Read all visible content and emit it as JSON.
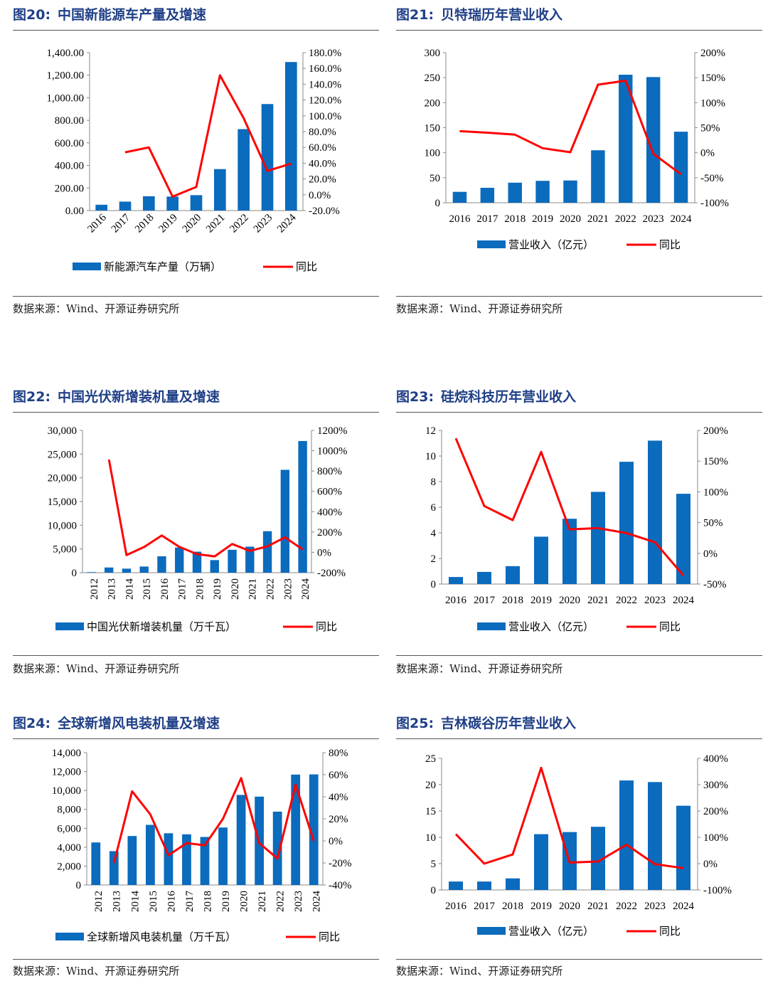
{
  "colors": {
    "bar": "#0b6bbd",
    "line": "#ff0000",
    "title": "#1f3f86"
  },
  "charts": [
    {
      "id": "c20",
      "num": "图20:",
      "title": "中国新能源车产量及增速",
      "source": "数据来源：Wind、开源证券研究所",
      "chart_data": {
        "type": "bar",
        "title": "中国新能源车产量及增速",
        "categories": [
          "2016",
          "2017",
          "2018",
          "2019",
          "2020",
          "2021",
          "2022",
          "2023",
          "2024"
        ],
        "series": [
          {
            "name": "新能源汽车产量（万辆）",
            "kind": "bar",
            "axis": "left",
            "values": [
              51.7,
              79.4,
              127.0,
              124.2,
              136.6,
              367.7,
              721.9,
              944.3,
              1316.8
            ]
          },
          {
            "name": "同比",
            "kind": "line",
            "axis": "right",
            "values": [
              null,
              53.8,
              60.0,
              -2.3,
              10.0,
              151.3,
              96.9,
              30.3,
              39.4
            ]
          }
        ],
        "left_axis": {
          "min": 0,
          "max": 1400,
          "ticks": [
            "0.00",
            "200.00",
            "400.00",
            "600.00",
            "800.00",
            "1,000.00",
            "1,200.00",
            "1,400.00"
          ]
        },
        "right_axis": {
          "min": -20,
          "max": 180,
          "ticks": [
            "-20.0%",
            "0.0%",
            "20.0%",
            "40.0%",
            "60.0%",
            "80.0%",
            "100.0%",
            "120.0%",
            "140.0%",
            "160.0%",
            "180.0%"
          ]
        },
        "rotated_labels": true,
        "legend": [
          "新能源汽车产量（万辆）",
          "同比"
        ]
      }
    },
    {
      "id": "c21",
      "num": "图21:",
      "title": "贝特瑞历年营业收入",
      "source": "数据来源：Wind、开源证券研究所",
      "chart_data": {
        "type": "bar",
        "title": "贝特瑞历年营业收入",
        "categories": [
          "2016",
          "2017",
          "2018",
          "2019",
          "2020",
          "2021",
          "2022",
          "2023",
          "2024"
        ],
        "series": [
          {
            "name": "营业收入（亿元）",
            "kind": "bar",
            "axis": "left",
            "values": [
              21.8,
              29.9,
              40.1,
              43.8,
              44.5,
              104.9,
              255.9,
              251.2,
              142.0
            ]
          },
          {
            "name": "同比",
            "kind": "line",
            "axis": "right",
            "values": [
              43,
              40,
              36,
              9,
              1,
              136,
              144,
              -2,
              -43
            ]
          }
        ],
        "left_axis": {
          "min": 0,
          "max": 300,
          "ticks": [
            "0",
            "50",
            "100",
            "150",
            "200",
            "250",
            "300"
          ]
        },
        "right_axis": {
          "min": -100,
          "max": 200,
          "ticks": [
            "-100%",
            "-50%",
            "0%",
            "50%",
            "100%",
            "150%",
            "200%"
          ]
        },
        "rotated_labels": false,
        "legend": [
          "营业收入（亿元）",
          "同比"
        ]
      }
    },
    {
      "id": "c22",
      "num": "图22:",
      "title": "中国光伏新增装机量及增速",
      "source": "数据来源：Wind、开源证券研究所",
      "chart_data": {
        "type": "bar",
        "title": "中国光伏新增装机量及增速",
        "categories": [
          "2012",
          "2013",
          "2014",
          "2015",
          "2016",
          "2017",
          "2018",
          "2019",
          "2020",
          "2021",
          "2022",
          "2023",
          "2024"
        ],
        "series": [
          {
            "name": "中国光伏新增装机量（万千瓦）",
            "kind": "bar",
            "axis": "left",
            "values": [
              120,
              1095,
              850,
              1297,
              3454,
              5306,
              4426,
              2652,
              4820,
              5488,
              8741,
              21688,
              27760
            ]
          },
          {
            "name": "同比",
            "kind": "line",
            "axis": "right",
            "values": [
              null,
              913,
              -27,
              53,
              166,
              54,
              -17,
              -40,
              82,
              14,
              59,
              148,
              28
            ]
          }
        ],
        "left_axis": {
          "min": 0,
          "max": 30000,
          "ticks": [
            "0",
            "5,000",
            "10,000",
            "15,000",
            "20,000",
            "25,000",
            "30,000"
          ]
        },
        "right_axis": {
          "min": -200,
          "max": 1200,
          "ticks": [
            "-200%",
            "0%",
            "200%",
            "400%",
            "600%",
            "800%",
            "1000%",
            "1200%"
          ]
        },
        "rotated_labels": true,
        "legend": [
          "中国光伏新增装机量（万千瓦）",
          "同比"
        ]
      }
    },
    {
      "id": "c23",
      "num": "图23:",
      "title": "硅烷科技历年营业收入",
      "source": "数据来源：Wind、开源证券研究所",
      "chart_data": {
        "type": "bar",
        "title": "硅烷科技历年营业收入",
        "categories": [
          "2016",
          "2017",
          "2018",
          "2019",
          "2020",
          "2021",
          "2022",
          "2023",
          "2024"
        ],
        "series": [
          {
            "name": "营业收入（亿元）",
            "kind": "bar",
            "axis": "left",
            "values": [
              0.55,
              0.95,
              1.4,
              3.7,
              5.1,
              7.2,
              9.55,
              11.2,
              7.05
            ]
          },
          {
            "name": "同比",
            "kind": "line",
            "axis": "right",
            "values": [
              187,
              77,
              54,
              165,
              39,
              41,
              33,
              18,
              -36
            ]
          }
        ],
        "left_axis": {
          "min": 0,
          "max": 12,
          "ticks": [
            "0",
            "2",
            "4",
            "6",
            "8",
            "10",
            "12"
          ]
        },
        "right_axis": {
          "min": -50,
          "max": 200,
          "ticks": [
            "-50%",
            "0%",
            "50%",
            "100%",
            "150%",
            "200%"
          ]
        },
        "rotated_labels": false,
        "legend": [
          "营业收入（亿元）",
          "同比"
        ]
      }
    },
    {
      "id": "c24",
      "num": "图24:",
      "title": "全球新增风电装机量及增速",
      "source": "数据来源：Wind、开源证券研究所",
      "chart_data": {
        "type": "bar",
        "title": "全球新增风电装机量及增速",
        "categories": [
          "2012",
          "2013",
          "2014",
          "2015",
          "2016",
          "2017",
          "2018",
          "2019",
          "2020",
          "2021",
          "2022",
          "2023",
          "2024"
        ],
        "series": [
          {
            "name": "全球新增风电装机量（万千瓦）",
            "kind": "bar",
            "axis": "left",
            "values": [
              4500,
              3580,
              5180,
              6360,
              5470,
              5360,
              5080,
              6080,
              9530,
              9350,
              7760,
              11680,
              11700
            ]
          },
          {
            "name": "同比",
            "kind": "line",
            "axis": "right",
            "values": [
              null,
              -20,
              45,
              24,
              -13,
              -2,
              -4,
              20,
              57,
              -2,
              -16,
              51,
              0
            ]
          }
        ],
        "left_axis": {
          "min": 0,
          "max": 14000,
          "ticks": [
            "0",
            "2,000",
            "4,000",
            "6,000",
            "8,000",
            "10,000",
            "12,000",
            "14,000"
          ]
        },
        "right_axis": {
          "min": -40,
          "max": 80,
          "ticks": [
            "-40%",
            "-20%",
            "0%",
            "20%",
            "40%",
            "60%",
            "80%"
          ]
        },
        "rotated_labels": true,
        "legend": [
          "全球新增风电装机量（万千瓦）",
          "同比"
        ]
      }
    },
    {
      "id": "c25",
      "num": "图25:",
      "title": "吉林碳谷历年营业收入",
      "source": "数据来源：Wind、开源证券研究所",
      "chart_data": {
        "type": "bar",
        "title": "吉林碳谷历年营业收入",
        "categories": [
          "2016",
          "2017",
          "2018",
          "2019",
          "2020",
          "2021",
          "2022",
          "2023",
          "2024"
        ],
        "series": [
          {
            "name": "营业收入（亿元）",
            "kind": "bar",
            "axis": "left",
            "values": [
              1.6,
              1.6,
              2.2,
              10.6,
              11.0,
              12.0,
              20.8,
              20.5,
              16.0
            ]
          },
          {
            "name": "同比",
            "kind": "line",
            "axis": "right",
            "values": [
              112,
              0,
              35,
              364,
              4,
              8,
              72,
              -2,
              -17
            ]
          }
        ],
        "left_axis": {
          "min": 0,
          "max": 25,
          "ticks": [
            "0",
            "5",
            "10",
            "15",
            "20",
            "25"
          ]
        },
        "right_axis": {
          "min": -100,
          "max": 400,
          "ticks": [
            "-100%",
            "0%",
            "100%",
            "200%",
            "300%",
            "400%"
          ]
        },
        "rotated_labels": false,
        "legend": [
          "营业收入（亿元）",
          "同比"
        ]
      }
    }
  ]
}
